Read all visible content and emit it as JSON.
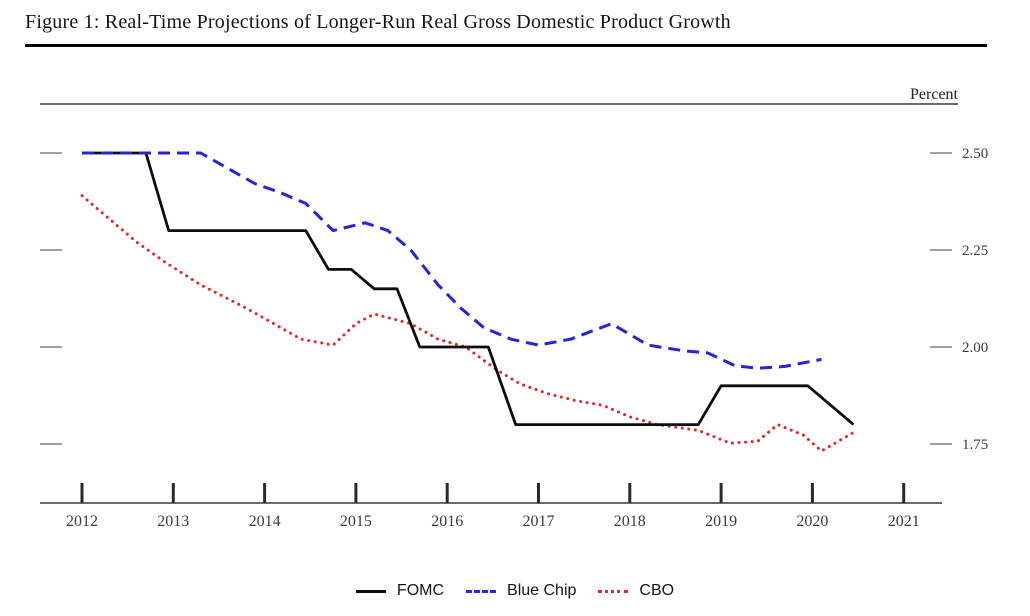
{
  "figure": {
    "title": "Figure 1: Real-Time Projections of Longer-Run Real Gross Domestic Product Growth",
    "y_axis_unit_label": "Percent"
  },
  "legend": [
    {
      "label": "FOMC",
      "style": "solid",
      "color": "#0d0d0d"
    },
    {
      "label": "Blue Chip",
      "style": "dashed",
      "color": "#2323e0"
    },
    {
      "label": "CBO",
      "style": "dotted",
      "color": "#e02828"
    }
  ],
  "chart_data": {
    "type": "line",
    "title": "Real-Time Projections of Longer-Run Real Gross Domestic Product Growth",
    "xlabel": "",
    "ylabel": "Percent",
    "grid": false,
    "legend_position": "bottom-center",
    "xlim": [
      2011.54,
      2021.42
    ],
    "ylim": [
      1.6,
      2.62
    ],
    "x_tick_labels": [
      "2012",
      "2013",
      "2014",
      "2015",
      "2016",
      "2017",
      "2018",
      "2019",
      "2020",
      "2021"
    ],
    "x_ticks": [
      2012,
      2013,
      2014,
      2015,
      2016,
      2017,
      2018,
      2019,
      2020,
      2021
    ],
    "y_ticks": [
      2.5,
      2.25,
      2.0,
      1.75
    ],
    "y_tick_labels": [
      "2.50",
      "2.25",
      "2.00",
      "1.75"
    ],
    "series": [
      {
        "name": "FOMC",
        "color": "#0d0d0d",
        "line_style": "solid",
        "points": [
          [
            2012.0,
            2.5
          ],
          [
            2012.7,
            2.5
          ],
          [
            2012.95,
            2.3
          ],
          [
            2014.45,
            2.3
          ],
          [
            2014.7,
            2.2
          ],
          [
            2014.95,
            2.2
          ],
          [
            2015.2,
            2.15
          ],
          [
            2015.45,
            2.15
          ],
          [
            2015.7,
            2.0
          ],
          [
            2016.45,
            2.0
          ],
          [
            2016.75,
            1.8
          ],
          [
            2018.75,
            1.8
          ],
          [
            2019.0,
            1.9
          ],
          [
            2019.95,
            1.9
          ],
          [
            2020.45,
            1.8
          ]
        ]
      },
      {
        "name": "Blue Chip",
        "color": "#2323e0",
        "line_style": "dashed",
        "points": [
          [
            2012.0,
            2.5
          ],
          [
            2013.3,
            2.5
          ],
          [
            2013.6,
            2.46
          ],
          [
            2013.9,
            2.42
          ],
          [
            2014.15,
            2.4
          ],
          [
            2014.45,
            2.37
          ],
          [
            2014.75,
            2.3
          ],
          [
            2015.1,
            2.32
          ],
          [
            2015.35,
            2.3
          ],
          [
            2015.6,
            2.25
          ],
          [
            2015.9,
            2.16
          ],
          [
            2016.15,
            2.1
          ],
          [
            2016.4,
            2.05
          ],
          [
            2016.7,
            2.02
          ],
          [
            2017.0,
            2.005
          ],
          [
            2017.35,
            2.02
          ],
          [
            2017.8,
            2.06
          ],
          [
            2018.2,
            2.005
          ],
          [
            2018.6,
            1.99
          ],
          [
            2018.85,
            1.985
          ],
          [
            2019.15,
            1.952
          ],
          [
            2019.4,
            1.945
          ],
          [
            2019.7,
            1.95
          ],
          [
            2020.1,
            1.968
          ]
        ]
      },
      {
        "name": "CBO",
        "color": "#e02828",
        "line_style": "dotted",
        "points": [
          [
            2012.0,
            2.39
          ],
          [
            2012.3,
            2.33
          ],
          [
            2012.6,
            2.27
          ],
          [
            2012.9,
            2.22
          ],
          [
            2013.3,
            2.16
          ],
          [
            2013.8,
            2.1
          ],
          [
            2014.1,
            2.06
          ],
          [
            2014.4,
            2.02
          ],
          [
            2014.75,
            2.005
          ],
          [
            2015.0,
            2.06
          ],
          [
            2015.2,
            2.085
          ],
          [
            2015.6,
            2.06
          ],
          [
            2015.9,
            2.02
          ],
          [
            2016.2,
            2.0
          ],
          [
            2016.55,
            1.94
          ],
          [
            2016.8,
            1.905
          ],
          [
            2017.1,
            1.88
          ],
          [
            2017.4,
            1.862
          ],
          [
            2017.7,
            1.85
          ],
          [
            2018.0,
            1.82
          ],
          [
            2018.3,
            1.8
          ],
          [
            2018.75,
            1.785
          ],
          [
            2019.1,
            1.752
          ],
          [
            2019.4,
            1.757
          ],
          [
            2019.62,
            1.8
          ],
          [
            2019.9,
            1.773
          ],
          [
            2020.1,
            1.732
          ],
          [
            2020.45,
            1.78
          ]
        ]
      }
    ]
  }
}
